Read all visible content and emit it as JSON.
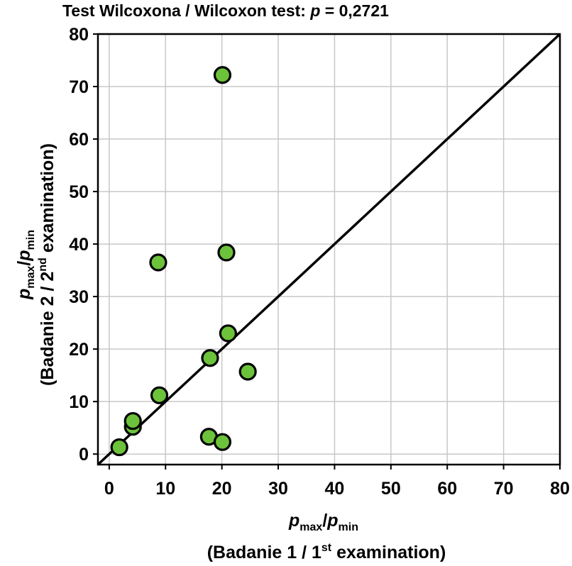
{
  "chart_data": {
    "type": "scatter",
    "title": {
      "prefix": "Test Wilcoxona / Wilcoxon test: ",
      "stat": "p",
      "eq": " = 0,2721"
    },
    "xlabel": {
      "var": "p",
      "sub1": "max",
      "slash": "/",
      "var2": "p",
      "sub2": "min",
      "line2_pre": "(Badanie 1 / 1",
      "line2_sup": "st",
      "line2_post": " examination)"
    },
    "ylabel": {
      "var": "p",
      "sub1": "max",
      "slash": "/",
      "var2": "p",
      "sub2": "min",
      "line2_pre": "(Badanie 2 / 2",
      "line2_sup": "nd",
      "line2_post": " examination)"
    },
    "xlim": [
      -2,
      80
    ],
    "ylim": [
      -2,
      80
    ],
    "xticks": [
      "0",
      "10",
      "20",
      "30",
      "40",
      "50",
      "60",
      "70",
      "80"
    ],
    "yticks": [
      "0",
      "10",
      "20",
      "30",
      "40",
      "50",
      "60",
      "70",
      "80"
    ],
    "grid": true,
    "reference_line": {
      "type": "identity",
      "from": [
        -2,
        -2
      ],
      "to": [
        80,
        80
      ]
    },
    "point_color": "#6cc23a",
    "points": [
      {
        "x": 1.8,
        "y": 1.3
      },
      {
        "x": 4.2,
        "y": 5.2
      },
      {
        "x": 4.2,
        "y": 6.3
      },
      {
        "x": 8.9,
        "y": 11.2
      },
      {
        "x": 8.7,
        "y": 36.5
      },
      {
        "x": 17.7,
        "y": 3.3
      },
      {
        "x": 17.9,
        "y": 18.3
      },
      {
        "x": 20.1,
        "y": 2.3
      },
      {
        "x": 20.1,
        "y": 72.2
      },
      {
        "x": 20.8,
        "y": 38.4
      },
      {
        "x": 21.1,
        "y": 23.0
      },
      {
        "x": 24.6,
        "y": 15.7
      }
    ]
  }
}
